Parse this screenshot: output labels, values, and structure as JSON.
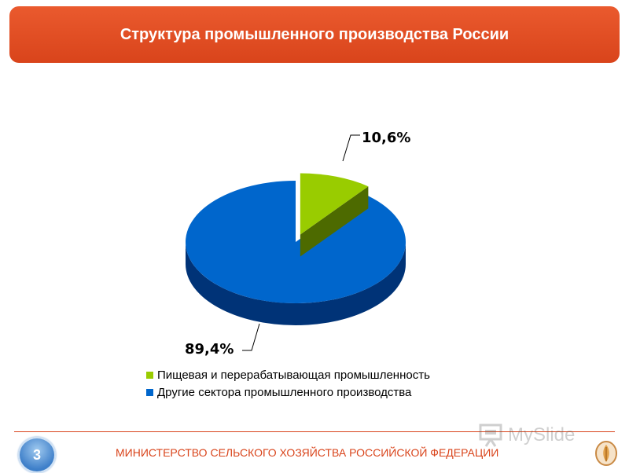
{
  "header": {
    "title": "Структура промышленного производства России"
  },
  "chart_data": {
    "type": "pie",
    "categories": [
      "Пищевая и перерабатывающая промышленность",
      "Другие сектора промышленного производства"
    ],
    "values": [
      10.6,
      89.4
    ],
    "data_labels": [
      "10,6%",
      "89,4%"
    ],
    "colors": [
      "#99cc00",
      "#0066cc"
    ],
    "side_colors": [
      "#4d6a00",
      "#003377"
    ],
    "exploded_slice": 0,
    "legend_position": "bottom"
  },
  "footer": {
    "page_number": "3",
    "ministry": "МИНИСТЕРСТВО СЕЛЬСКОГО ХОЗЯЙСТВА РОССИЙСКОЙ ФЕДЕРАЦИИ",
    "watermark": "MySlide"
  }
}
